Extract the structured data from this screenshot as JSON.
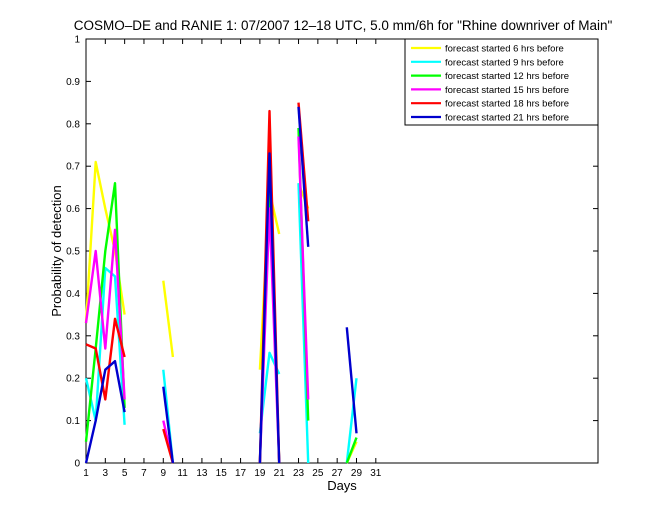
{
  "chart_data": {
    "type": "line",
    "title": "COSMO–DE and RANIE 1: 07/2007 12–18 UTC, 5.0 mm/6h for \"Rhine downriver of Main\"",
    "xlabel": "Days",
    "ylabel": "Probability of detection",
    "xlim": [
      1,
      54
    ],
    "ylim": [
      0,
      1
    ],
    "xticks": [
      1,
      3,
      5,
      7,
      9,
      11,
      13,
      15,
      17,
      19,
      21,
      23,
      25,
      27,
      29,
      31
    ],
    "yticks": [
      0,
      0.1,
      0.2,
      0.3,
      0.4,
      0.5,
      0.6,
      0.7,
      0.8,
      0.9,
      1
    ],
    "ytick_labels": [
      "0",
      "0.1",
      "0.2",
      "0.3",
      "0.4",
      "0.5",
      "0.6",
      "0.7",
      "0.8",
      "0.9",
      "1"
    ],
    "legend_position": "top-right",
    "grid": false,
    "series": [
      {
        "name": "forecast started 6 hrs before",
        "color": "#ffff00",
        "segments": [
          [
            [
              1,
              0.33
            ],
            [
              2,
              0.71
            ],
            [
              3,
              0.6
            ],
            [
              4,
              0.5
            ],
            [
              5,
              0.35
            ]
          ],
          [
            [
              9,
              0.43
            ],
            [
              10,
              0.25
            ]
          ],
          [
            [
              19,
              0.22
            ],
            [
              20,
              0.64
            ],
            [
              21,
              0.54
            ]
          ],
          [
            [
              23,
              0.66
            ],
            [
              24,
              0.6
            ]
          ],
          [
            [
              28,
              0.0
            ],
            [
              29,
              0.05
            ]
          ]
        ]
      },
      {
        "name": "forecast started 9 hrs before",
        "color": "#00ffff",
        "segments": [
          [
            [
              1,
              0.2
            ],
            [
              2,
              0.1
            ],
            [
              3,
              0.46
            ],
            [
              4,
              0.44
            ],
            [
              5,
              0.09
            ]
          ],
          [
            [
              9,
              0.22
            ],
            [
              10,
              0.0
            ]
          ],
          [
            [
              19,
              0.07
            ],
            [
              20,
              0.26
            ],
            [
              21,
              0.21
            ]
          ],
          [
            [
              23,
              0.66
            ],
            [
              24,
              0.0
            ]
          ],
          [
            [
              28,
              0.0
            ],
            [
              29,
              0.2
            ]
          ]
        ]
      },
      {
        "name": "forecast started 12 hrs before",
        "color": "#00ff00",
        "segments": [
          [
            [
              1,
              0.05
            ],
            [
              2,
              0.27
            ],
            [
              3,
              0.5
            ],
            [
              4,
              0.66
            ],
            [
              5,
              0.13
            ]
          ],
          [
            [
              19,
              0.0
            ],
            [
              20,
              0.68
            ],
            [
              21,
              0.0
            ]
          ],
          [
            [
              23,
              0.79
            ],
            [
              24,
              0.1
            ]
          ],
          [
            [
              28,
              0.0
            ],
            [
              29,
              0.06
            ]
          ]
        ]
      },
      {
        "name": "forecast started 15 hrs before",
        "color": "#ff00ff",
        "segments": [
          [
            [
              1,
              0.33
            ],
            [
              2,
              0.5
            ],
            [
              3,
              0.27
            ],
            [
              4,
              0.55
            ],
            [
              5,
              0.15
            ]
          ],
          [
            [
              9,
              0.1
            ],
            [
              10,
              0.0
            ]
          ],
          [
            [
              19,
              0.0
            ],
            [
              20,
              0.6
            ],
            [
              21,
              0.0
            ]
          ],
          [
            [
              23,
              0.77
            ],
            [
              24,
              0.15
            ]
          ]
        ]
      },
      {
        "name": "forecast started 18 hrs before",
        "color": "#ff0000",
        "segments": [
          [
            [
              1,
              0.28
            ],
            [
              2,
              0.27
            ],
            [
              3,
              0.15
            ],
            [
              4,
              0.34
            ],
            [
              5,
              0.25
            ]
          ],
          [
            [
              9,
              0.08
            ],
            [
              10,
              0.0
            ]
          ],
          [
            [
              19,
              0.0
            ],
            [
              20,
              0.83
            ],
            [
              21,
              0.0
            ]
          ],
          [
            [
              23,
              0.85
            ],
            [
              24,
              0.57
            ]
          ]
        ]
      },
      {
        "name": "forecast started 21 hrs before",
        "color": "#0000cd",
        "segments": [
          [
            [
              1,
              0.0
            ],
            [
              2,
              0.1
            ],
            [
              3,
              0.22
            ],
            [
              4,
              0.24
            ],
            [
              5,
              0.12
            ]
          ],
          [
            [
              9,
              0.18
            ],
            [
              10,
              0.0
            ]
          ],
          [
            [
              19,
              0.0
            ],
            [
              20,
              0.73
            ],
            [
              21,
              0.0
            ]
          ],
          [
            [
              23,
              0.84
            ],
            [
              24,
              0.51
            ]
          ],
          [
            [
              28,
              0.32
            ],
            [
              29,
              0.07
            ]
          ]
        ]
      }
    ]
  }
}
